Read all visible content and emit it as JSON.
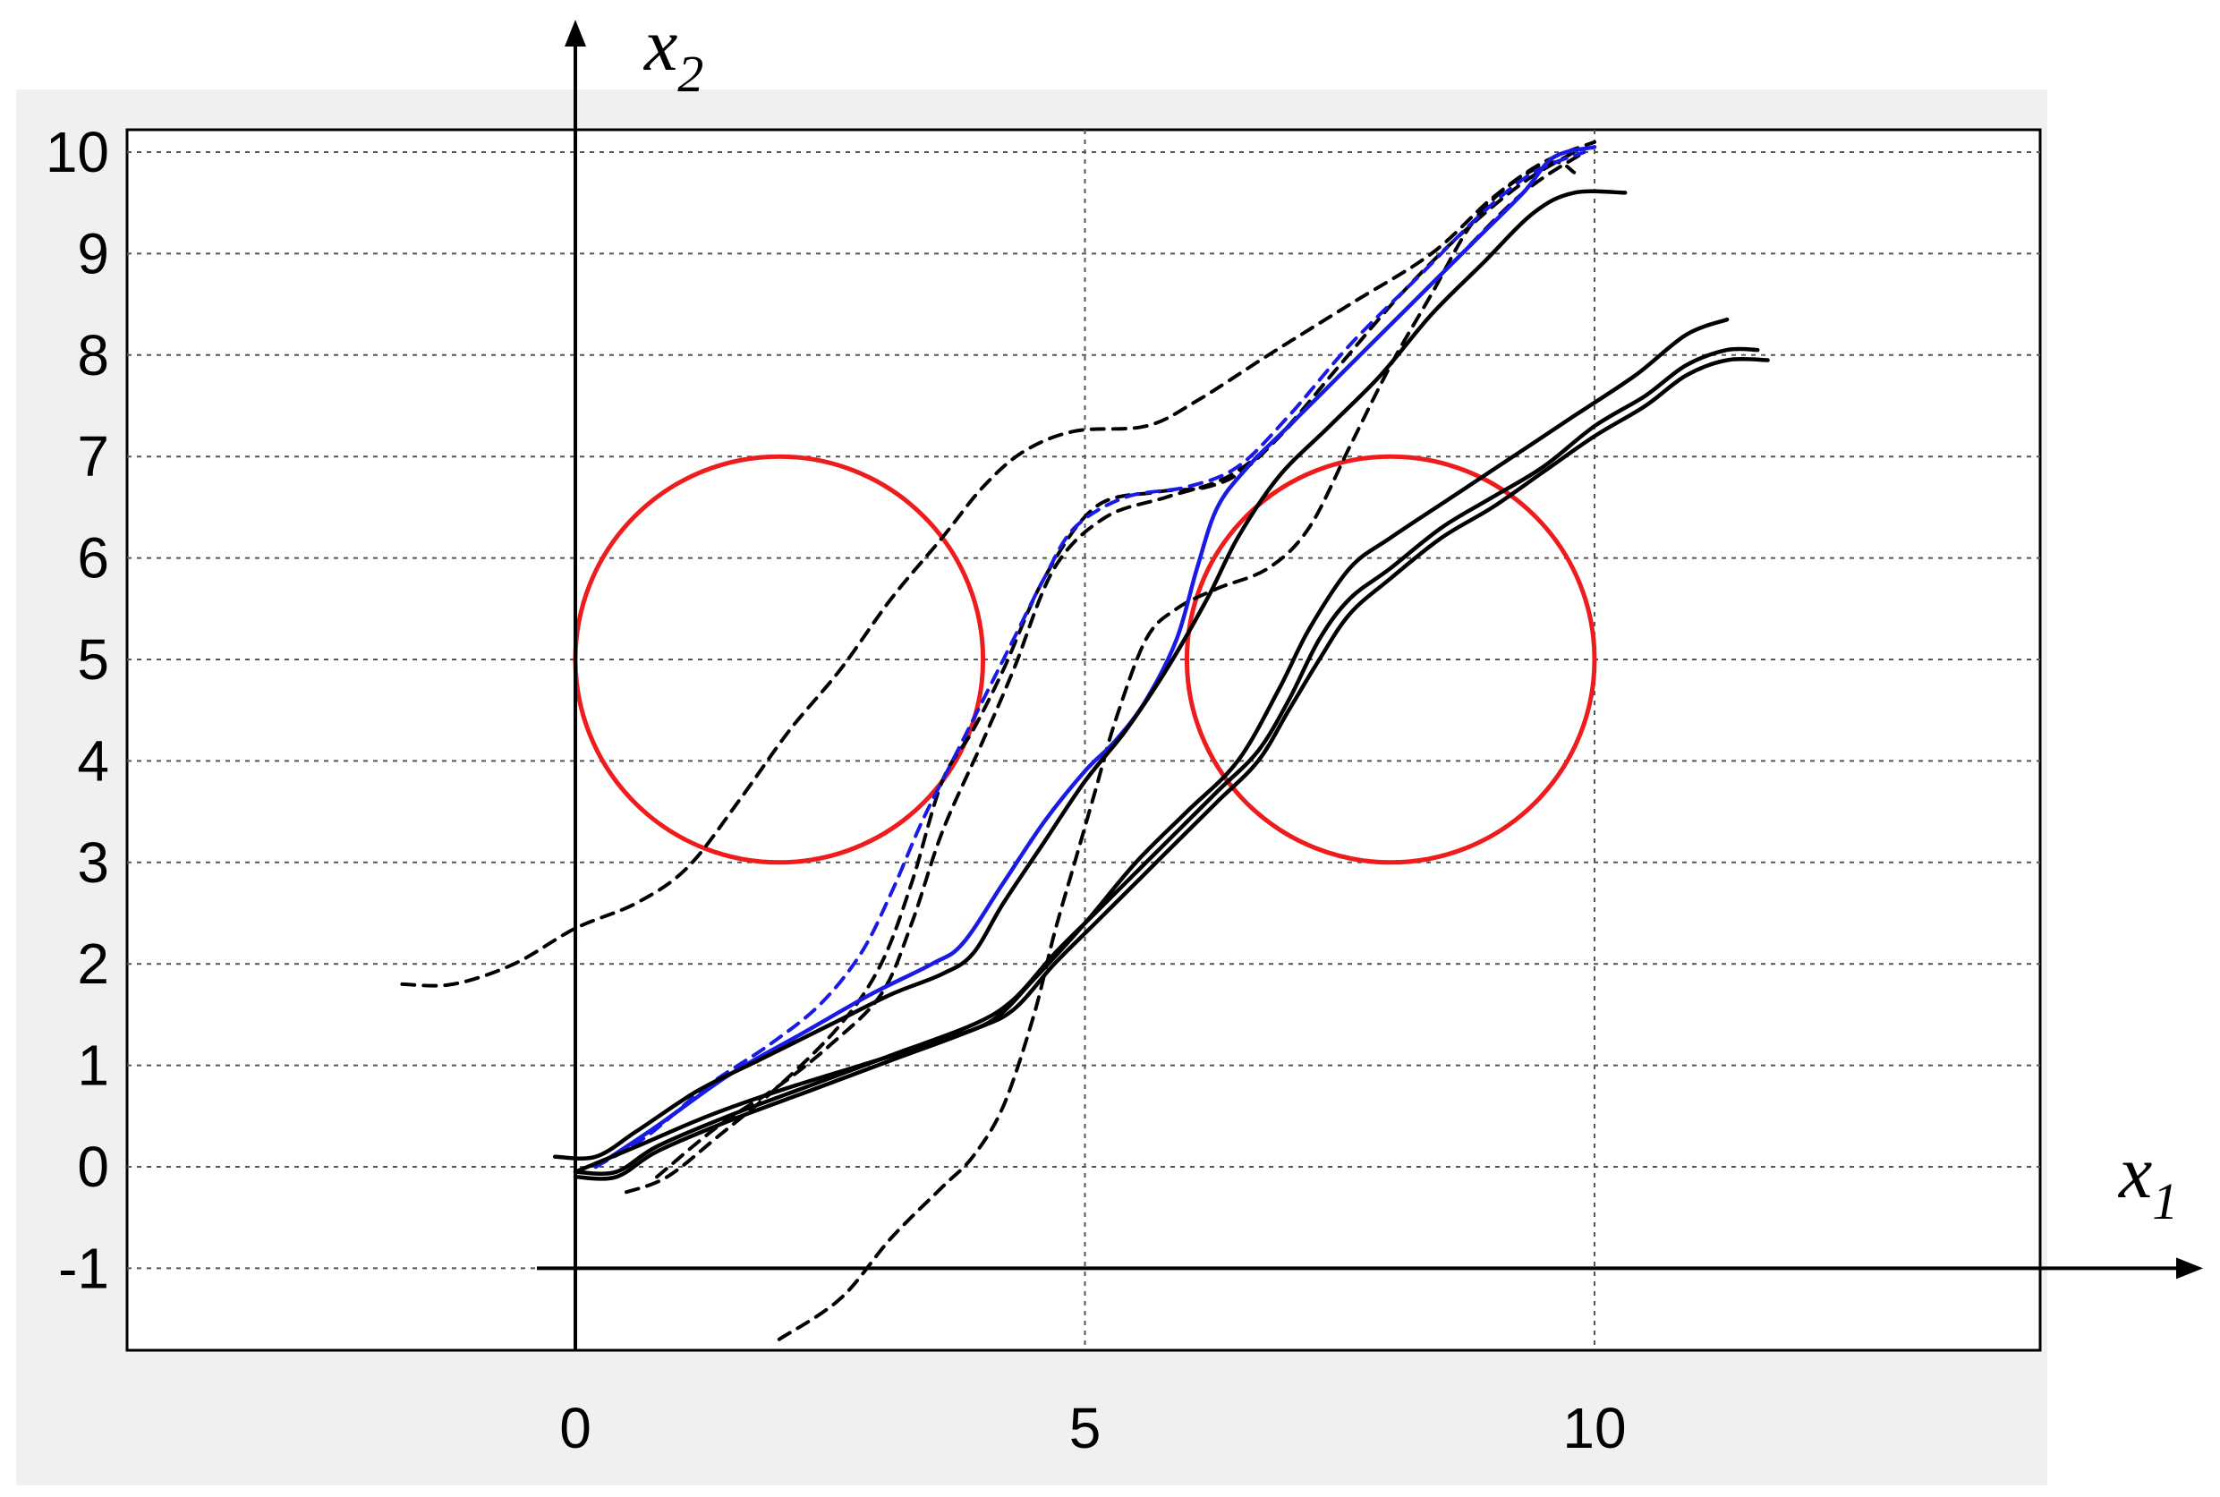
{
  "chart_data": {
    "type": "line",
    "title": "",
    "xlabel": {
      "base": "x",
      "sub": "1"
    },
    "ylabel": {
      "base": "x",
      "sub": "2"
    },
    "xlim": [
      -4.4,
      14.5
    ],
    "ylim": [
      -1.8,
      10.25
    ],
    "x_ticks": [
      0,
      5,
      10
    ],
    "x_tick_labels": [
      "0",
      "5",
      "10"
    ],
    "y_ticks": [
      -1,
      0,
      1,
      2,
      3,
      4,
      5,
      6,
      7,
      8,
      9,
      10
    ],
    "y_tick_labels": [
      "-1",
      "0",
      "1",
      "2",
      "3",
      "4",
      "5",
      "6",
      "7",
      "8",
      "9",
      "10"
    ],
    "grid": true,
    "legend": "none",
    "colors": {
      "obstacle": "#ee1c1c",
      "highlight": "#1a1ae6",
      "trajectory": "#000000",
      "grid": "#555555",
      "panel": "#f0f0f0"
    },
    "obstacles": [
      {
        "name": "",
        "center": [
          2,
          5
        ],
        "radius": 2
      },
      {
        "name": "",
        "center": [
          8,
          5
        ],
        "radius": 2
      }
    ],
    "series": [
      {
        "style": "dashed",
        "color": "#000000",
        "points": [
          [
            -1.7,
            1.8
          ],
          [
            -1.2,
            1.8
          ],
          [
            -0.6,
            2.0
          ],
          [
            0,
            2.35
          ],
          [
            0.6,
            2.6
          ],
          [
            1.1,
            2.95
          ],
          [
            1.6,
            3.6
          ],
          [
            2.1,
            4.3
          ],
          [
            2.6,
            4.9
          ],
          [
            3.1,
            5.6
          ],
          [
            3.6,
            6.2
          ],
          [
            4.0,
            6.7
          ],
          [
            4.4,
            7.05
          ],
          [
            4.9,
            7.25
          ],
          [
            5.6,
            7.3
          ],
          [
            6.1,
            7.55
          ],
          [
            6.8,
            8.0
          ],
          [
            7.6,
            8.5
          ],
          [
            8.4,
            9.0
          ],
          [
            9.0,
            9.55
          ],
          [
            9.5,
            9.9
          ],
          [
            10.0,
            10.1
          ]
        ]
      },
      {
        "style": "dashed",
        "color": "#000000",
        "points": [
          [
            0.5,
            -0.25
          ],
          [
            0.9,
            -0.1
          ],
          [
            1.4,
            0.3
          ],
          [
            2.0,
            0.8
          ],
          [
            2.6,
            1.4
          ],
          [
            3.0,
            2.0
          ],
          [
            3.3,
            2.8
          ],
          [
            3.6,
            3.8
          ],
          [
            3.9,
            4.3
          ],
          [
            4.2,
            4.9
          ],
          [
            4.6,
            5.8
          ],
          [
            5.1,
            6.5
          ],
          [
            5.7,
            6.65
          ],
          [
            6.2,
            6.7
          ],
          [
            6.6,
            6.9
          ],
          [
            7.2,
            7.5
          ],
          [
            7.9,
            8.2
          ],
          [
            8.6,
            8.9
          ],
          [
            9.3,
            9.6
          ],
          [
            9.9,
            10.0
          ]
        ]
      },
      {
        "style": "dashed",
        "color": "#000000",
        "points": [
          [
            0.8,
            -0.1
          ],
          [
            1.4,
            0.4
          ],
          [
            2.0,
            0.8
          ],
          [
            2.5,
            1.2
          ],
          [
            3.0,
            1.7
          ],
          [
            3.3,
            2.4
          ],
          [
            3.6,
            3.3
          ],
          [
            4.0,
            4.2
          ],
          [
            4.3,
            4.9
          ],
          [
            4.7,
            5.9
          ],
          [
            5.2,
            6.4
          ],
          [
            5.8,
            6.6
          ],
          [
            6.4,
            6.8
          ],
          [
            6.9,
            7.2
          ],
          [
            7.5,
            7.9
          ],
          [
            8.1,
            8.6
          ],
          [
            8.7,
            9.2
          ],
          [
            9.3,
            9.7
          ],
          [
            9.8,
            10.0
          ]
        ]
      },
      {
        "style": "dashed",
        "color": "#000000",
        "points": [
          [
            2.0,
            -1.7
          ],
          [
            2.6,
            -1.3
          ],
          [
            3.1,
            -0.7
          ],
          [
            3.6,
            -0.2
          ],
          [
            3.9,
            0.1
          ],
          [
            4.2,
            0.6
          ],
          [
            4.5,
            1.5
          ],
          [
            4.7,
            2.3
          ],
          [
            4.9,
            3.0
          ],
          [
            5.1,
            3.7
          ],
          [
            5.3,
            4.4
          ],
          [
            5.6,
            5.2
          ],
          [
            5.9,
            5.5
          ],
          [
            6.3,
            5.7
          ],
          [
            6.8,
            5.9
          ],
          [
            7.2,
            6.3
          ],
          [
            7.6,
            7.1
          ],
          [
            8.0,
            7.9
          ],
          [
            8.4,
            8.6
          ],
          [
            8.8,
            9.3
          ],
          [
            9.2,
            9.7
          ],
          [
            9.6,
            9.9
          ],
          [
            9.8,
            9.8
          ]
        ]
      },
      {
        "style": "dashed",
        "color": "#1a1ae6",
        "points": [
          [
            0.2,
            0.0
          ],
          [
            0.7,
            0.3
          ],
          [
            1.3,
            0.8
          ],
          [
            1.9,
            1.2
          ],
          [
            2.4,
            1.6
          ],
          [
            2.8,
            2.1
          ],
          [
            3.1,
            2.7
          ],
          [
            3.4,
            3.4
          ],
          [
            3.7,
            4.0
          ],
          [
            4.0,
            4.6
          ],
          [
            4.3,
            5.2
          ],
          [
            4.6,
            5.8
          ],
          [
            4.9,
            6.3
          ],
          [
            5.4,
            6.6
          ],
          [
            6.0,
            6.7
          ],
          [
            6.5,
            6.9
          ],
          [
            7.0,
            7.4
          ],
          [
            7.6,
            8.1
          ],
          [
            8.3,
            8.8
          ],
          [
            8.9,
            9.4
          ],
          [
            9.4,
            9.8
          ],
          [
            9.9,
            10.0
          ]
        ]
      },
      {
        "style": "solid",
        "color": "#1a1ae6",
        "points": [
          [
            0.2,
            0.0
          ],
          [
            0.8,
            0.4
          ],
          [
            1.5,
            0.9
          ],
          [
            2.2,
            1.3
          ],
          [
            2.9,
            1.7
          ],
          [
            3.5,
            2.0
          ],
          [
            3.8,
            2.2
          ],
          [
            4.2,
            2.8
          ],
          [
            4.6,
            3.4
          ],
          [
            5.0,
            3.9
          ],
          [
            5.3,
            4.2
          ],
          [
            5.6,
            4.6
          ],
          [
            5.9,
            5.2
          ],
          [
            6.1,
            5.9
          ],
          [
            6.3,
            6.5
          ],
          [
            6.6,
            6.9
          ],
          [
            7.0,
            7.3
          ],
          [
            7.6,
            7.9
          ],
          [
            8.2,
            8.5
          ],
          [
            8.8,
            9.1
          ],
          [
            9.3,
            9.6
          ],
          [
            9.6,
            9.95
          ],
          [
            10.0,
            10.05
          ]
        ]
      },
      {
        "style": "solid",
        "color": "#000000",
        "points": [
          [
            -0.2,
            0.1
          ],
          [
            0.2,
            0.1
          ],
          [
            0.6,
            0.35
          ],
          [
            1.2,
            0.75
          ],
          [
            1.8,
            1.05
          ],
          [
            2.5,
            1.4
          ],
          [
            3.1,
            1.7
          ],
          [
            3.6,
            1.9
          ],
          [
            3.9,
            2.1
          ],
          [
            4.2,
            2.6
          ],
          [
            4.6,
            3.2
          ],
          [
            5.0,
            3.8
          ],
          [
            5.4,
            4.3
          ],
          [
            5.8,
            4.9
          ],
          [
            6.2,
            5.6
          ],
          [
            6.5,
            6.2
          ],
          [
            6.9,
            6.8
          ],
          [
            7.4,
            7.3
          ],
          [
            7.9,
            7.8
          ],
          [
            8.4,
            8.4
          ],
          [
            8.9,
            8.9
          ],
          [
            9.4,
            9.4
          ],
          [
            9.8,
            9.6
          ],
          [
            10.3,
            9.6
          ]
        ]
      },
      {
        "style": "solid",
        "color": "#000000",
        "points": [
          [
            0.0,
            -0.05
          ],
          [
            0.4,
            -0.05
          ],
          [
            0.8,
            0.2
          ],
          [
            1.5,
            0.5
          ],
          [
            2.3,
            0.8
          ],
          [
            3.1,
            1.1
          ],
          [
            3.9,
            1.4
          ],
          [
            4.3,
            1.65
          ],
          [
            4.7,
            2.1
          ],
          [
            5.1,
            2.5
          ],
          [
            5.5,
            2.9
          ],
          [
            5.9,
            3.3
          ],
          [
            6.3,
            3.7
          ],
          [
            6.7,
            4.1
          ],
          [
            7.0,
            4.6
          ],
          [
            7.3,
            5.2
          ],
          [
            7.6,
            5.6
          ],
          [
            8.0,
            5.9
          ],
          [
            8.5,
            6.3
          ],
          [
            9.0,
            6.6
          ],
          [
            9.5,
            6.9
          ],
          [
            10.0,
            7.3
          ],
          [
            10.5,
            7.6
          ],
          [
            10.9,
            7.9
          ],
          [
            11.3,
            8.05
          ],
          [
            11.6,
            8.05
          ]
        ]
      },
      {
        "style": "solid",
        "color": "#000000",
        "points": [
          [
            0.0,
            -0.1
          ],
          [
            0.4,
            -0.1
          ],
          [
            0.8,
            0.15
          ],
          [
            1.5,
            0.45
          ],
          [
            2.3,
            0.75
          ],
          [
            3.1,
            1.05
          ],
          [
            3.9,
            1.35
          ],
          [
            4.3,
            1.55
          ],
          [
            4.7,
            2.0
          ],
          [
            5.1,
            2.4
          ],
          [
            5.5,
            2.8
          ],
          [
            5.9,
            3.2
          ],
          [
            6.3,
            3.6
          ],
          [
            6.7,
            4.0
          ],
          [
            7.0,
            4.5
          ],
          [
            7.3,
            5.0
          ],
          [
            7.6,
            5.45
          ],
          [
            8.0,
            5.8
          ],
          [
            8.5,
            6.2
          ],
          [
            9.0,
            6.5
          ],
          [
            9.5,
            6.85
          ],
          [
            10.0,
            7.2
          ],
          [
            10.5,
            7.5
          ],
          [
            10.9,
            7.8
          ],
          [
            11.3,
            7.95
          ],
          [
            11.7,
            7.95
          ]
        ]
      },
      {
        "style": "solid",
        "color": "#000000",
        "points": [
          [
            0.0,
            -0.05
          ],
          [
            0.6,
            0.2
          ],
          [
            1.3,
            0.5
          ],
          [
            2.0,
            0.75
          ],
          [
            2.8,
            1.0
          ],
          [
            3.6,
            1.25
          ],
          [
            4.1,
            1.45
          ],
          [
            4.5,
            1.85
          ],
          [
            5.0,
            2.4
          ],
          [
            5.5,
            3.0
          ],
          [
            6.0,
            3.5
          ],
          [
            6.5,
            4.0
          ],
          [
            6.9,
            4.7
          ],
          [
            7.2,
            5.3
          ],
          [
            7.6,
            5.9
          ],
          [
            8.0,
            6.2
          ],
          [
            8.6,
            6.6
          ],
          [
            9.2,
            7.0
          ],
          [
            9.8,
            7.4
          ],
          [
            10.4,
            7.8
          ],
          [
            10.9,
            8.2
          ],
          [
            11.3,
            8.35
          ]
        ]
      }
    ]
  }
}
